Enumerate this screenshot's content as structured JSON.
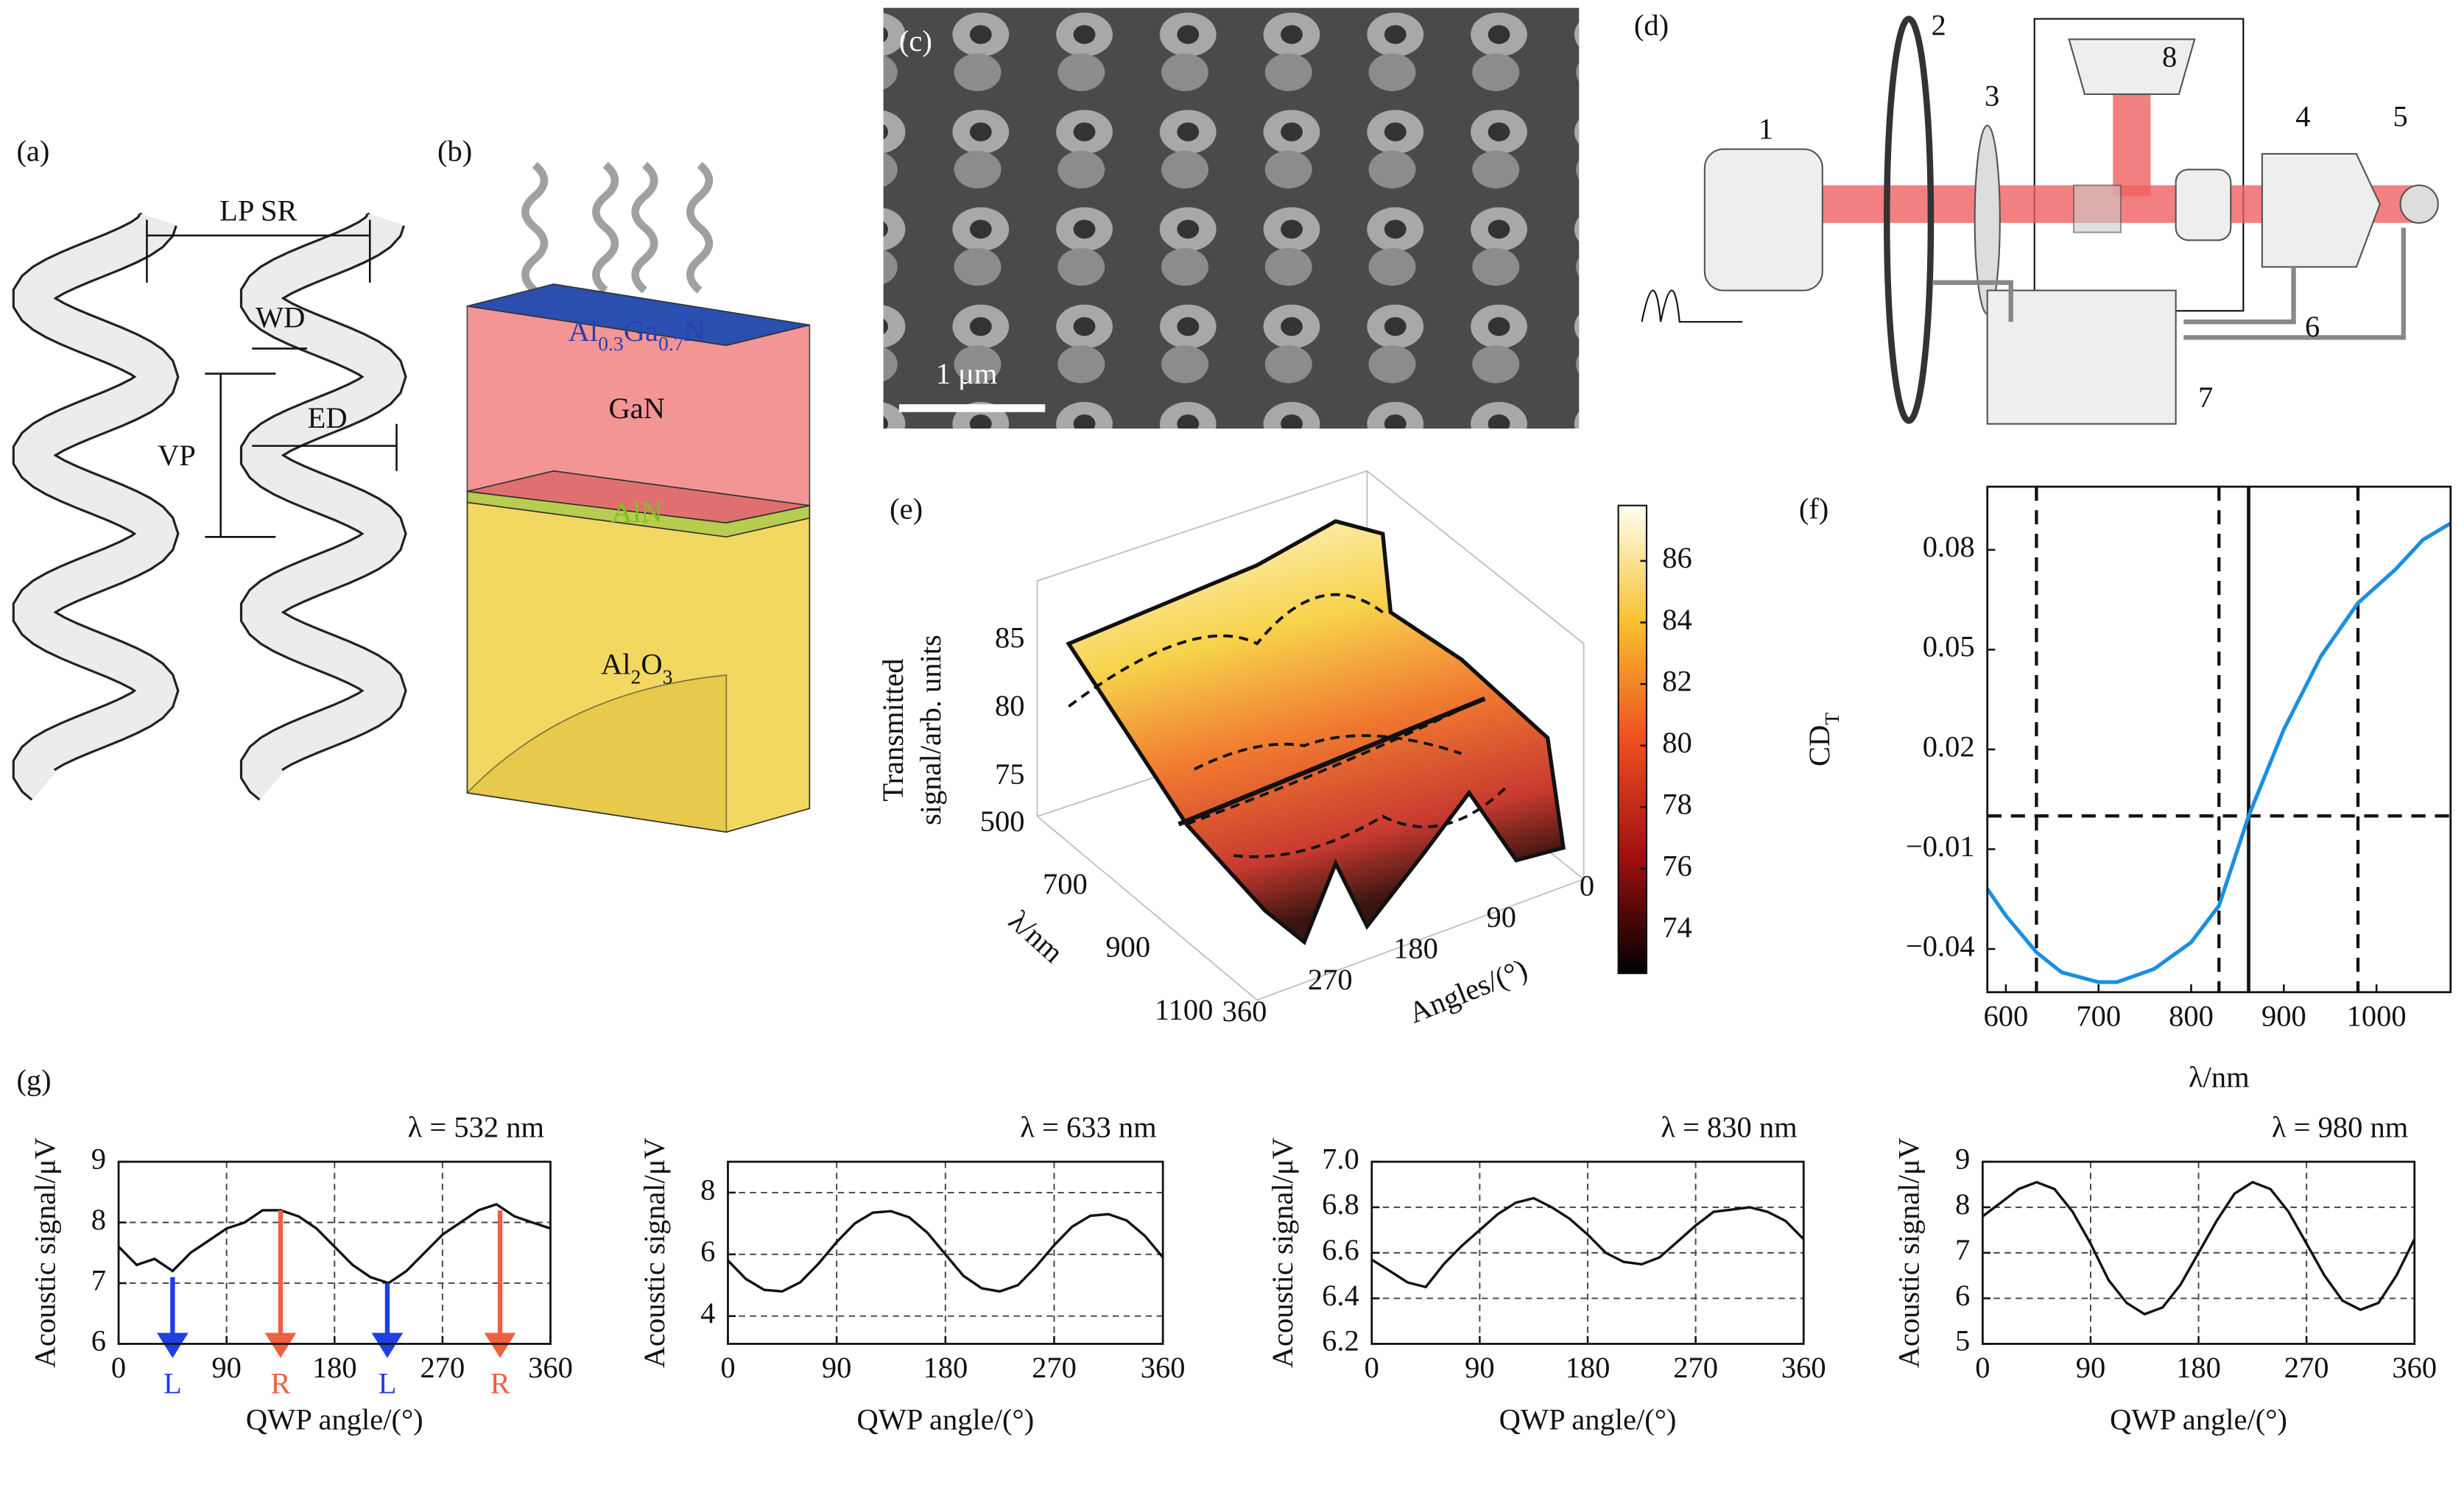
{
  "panel_labels": [
    "(a)",
    "(b)",
    "(c)",
    "(d)",
    "(e)",
    "(f)",
    "(g)"
  ],
  "a": {
    "lp_sr": "LP SR",
    "wd": "WD",
    "ed": "ED",
    "vp": "VP"
  },
  "b": {
    "algan": [
      "Al",
      "0.3",
      "Ga",
      "0.7",
      "N"
    ],
    "gan": "GaN",
    "aln": "AlN",
    "al2o3": [
      "Al",
      "2",
      "O",
      "3"
    ]
  },
  "c": {
    "scale": "1 μm"
  },
  "d": {
    "parts": [
      "1",
      "2",
      "3",
      "4",
      "5",
      "6",
      "7",
      "8"
    ]
  },
  "chart_data": [
    {
      "type": "line",
      "ylabel": [
        "CD",
        "T"
      ],
      "xlabel": "λ/nm",
      "color": "#1a8fe0",
      "x": [
        580,
        600,
        633,
        660,
        700,
        720,
        760,
        800,
        830,
        862,
        900,
        940,
        980,
        1020,
        1050,
        1080
      ],
      "values": [
        -0.022,
        -0.03,
        -0.041,
        -0.047,
        -0.05,
        -0.05,
        -0.046,
        -0.038,
        -0.027,
        0,
        0.026,
        0.048,
        0.064,
        0.074,
        0.083,
        0.088
      ],
      "xlim": [
        580,
        1080
      ],
      "xticks": [
        600,
        700,
        800,
        900,
        1000
      ],
      "ylim": [
        -0.053,
        0.099
      ],
      "yticks": [
        {
          "value": -0.04,
          "label": "−0.04"
        },
        {
          "value": -0.01,
          "label": "−0.01"
        },
        0.02,
        0.05,
        0.08
      ],
      "dashed_vlines": [
        633,
        830,
        980
      ],
      "solid_vlines": [
        862
      ],
      "dashed_hlines": [
        0
      ],
      "grid": false
    },
    {
      "type": "line",
      "title": "λ = 532 nm",
      "xlabel": "QWP angle/(°)",
      "ylabel": "Acoustic signal/μV",
      "color": "#111",
      "x": [
        0,
        15,
        30,
        45,
        60,
        75,
        90,
        105,
        120,
        135,
        150,
        165,
        180,
        195,
        210,
        225,
        240,
        255,
        270,
        285,
        300,
        315,
        330,
        345,
        360
      ],
      "values": [
        7.6,
        7.3,
        7.4,
        7.2,
        7.5,
        7.7,
        7.9,
        8.0,
        8.2,
        8.2,
        8.1,
        7.9,
        7.6,
        7.3,
        7.1,
        7.0,
        7.2,
        7.5,
        7.8,
        8.0,
        8.2,
        8.3,
        8.1,
        8.0,
        7.9
      ],
      "xlim": [
        0,
        360
      ],
      "xticks": [
        0,
        90,
        180,
        270,
        360
      ],
      "ylim": [
        6,
        9
      ],
      "yticks": [
        6,
        7,
        8,
        9
      ],
      "grid": true,
      "arrows": [
        {
          "x": 45,
          "y": 7.1,
          "label": "L",
          "color": "#1f3fe0"
        },
        {
          "x": 135,
          "y": 8.2,
          "label": "R",
          "color": "#f06040"
        },
        {
          "x": 224,
          "y": 7.0,
          "label": "L",
          "color": "#1f3fe0"
        },
        {
          "x": 318,
          "y": 8.2,
          "label": "R",
          "color": "#f06040"
        }
      ]
    },
    {
      "type": "line",
      "title": "λ = 633 nm",
      "xlabel": "QWP angle/(°)",
      "ylabel": "Acoustic signal/μV",
      "color": "#111",
      "x": [
        0,
        15,
        30,
        45,
        60,
        75,
        90,
        105,
        120,
        135,
        150,
        165,
        180,
        195,
        210,
        225,
        240,
        255,
        270,
        285,
        300,
        315,
        330,
        345,
        360
      ],
      "values": [
        5.8,
        5.2,
        4.85,
        4.8,
        5.1,
        5.7,
        6.4,
        7.0,
        7.35,
        7.4,
        7.2,
        6.7,
        6.0,
        5.3,
        4.9,
        4.8,
        5.0,
        5.6,
        6.3,
        6.9,
        7.25,
        7.3,
        7.1,
        6.6,
        5.9
      ],
      "xlim": [
        0,
        360
      ],
      "xticks": [
        0,
        90,
        180,
        270,
        360
      ],
      "ylim": [
        3.1,
        9
      ],
      "yticks": [
        4,
        6,
        8
      ],
      "grid": true
    },
    {
      "type": "line",
      "title": "λ = 830 nm",
      "xlabel": "QWP angle/(°)",
      "ylabel": "Acoustic signal/μV",
      "color": "#111",
      "x": [
        0,
        15,
        30,
        45,
        60,
        75,
        90,
        105,
        120,
        135,
        150,
        165,
        180,
        195,
        210,
        225,
        240,
        255,
        270,
        285,
        300,
        315,
        330,
        345,
        360
      ],
      "values": [
        6.57,
        6.52,
        6.47,
        6.45,
        6.55,
        6.63,
        6.7,
        6.77,
        6.82,
        6.84,
        6.8,
        6.75,
        6.68,
        6.6,
        6.56,
        6.55,
        6.58,
        6.65,
        6.72,
        6.78,
        6.79,
        6.8,
        6.78,
        6.74,
        6.66
      ],
      "xlim": [
        0,
        360
      ],
      "xticks": [
        0,
        90,
        180,
        270,
        360
      ],
      "ylim": [
        6.2,
        7.0
      ],
      "yticks": [
        6.2,
        6.4,
        6.6,
        6.8,
        {
          "value": 7,
          "label": "7.0"
        }
      ],
      "grid": true
    },
    {
      "type": "line",
      "title": "λ = 980 nm",
      "xlabel": "QWP angle/(°)",
      "ylabel": "Acoustic signal/μV",
      "color": "#111",
      "x": [
        0,
        15,
        30,
        45,
        60,
        75,
        90,
        105,
        120,
        135,
        150,
        165,
        180,
        195,
        210,
        225,
        240,
        255,
        270,
        285,
        300,
        315,
        330,
        345,
        360
      ],
      "values": [
        7.8,
        8.1,
        8.4,
        8.55,
        8.4,
        7.9,
        7.2,
        6.4,
        5.9,
        5.65,
        5.8,
        6.3,
        7.0,
        7.7,
        8.3,
        8.55,
        8.4,
        7.9,
        7.2,
        6.5,
        5.95,
        5.75,
        5.9,
        6.5,
        7.3
      ],
      "xlim": [
        0,
        360
      ],
      "xticks": [
        0,
        90,
        180,
        270,
        360
      ],
      "ylim": [
        5,
        9
      ],
      "yticks": [
        5,
        6,
        7,
        8,
        9
      ],
      "grid": true
    },
    {
      "type": "surface",
      "zlabel": [
        "Transmitted",
        "signal/arb. units"
      ],
      "xlabel": "λ/nm",
      "ylabel": "Angles/(°)",
      "xticks": [
        500,
        700,
        900,
        1100
      ],
      "yticks": [
        0,
        90,
        180,
        270,
        360
      ],
      "zticks": [
        75,
        80,
        85
      ],
      "clim": [
        72.6,
        87.8
      ],
      "cticks": [
        74,
        76,
        78,
        80,
        82,
        84,
        86
      ]
    }
  ]
}
